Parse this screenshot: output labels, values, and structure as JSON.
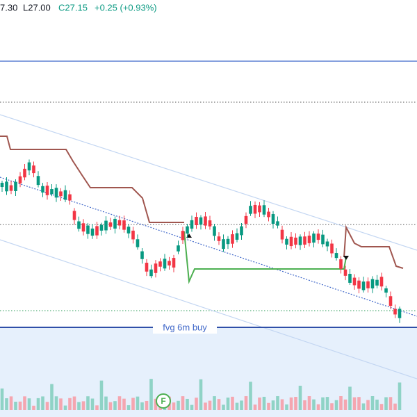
{
  "header": {
    "high": "7.30",
    "low": "L27.00",
    "close": "C27.15",
    "change": "+0.25 (+0.93%)"
  },
  "annotations": {
    "fvg_label": "fvg 6m buy",
    "marker": "F"
  }
}
